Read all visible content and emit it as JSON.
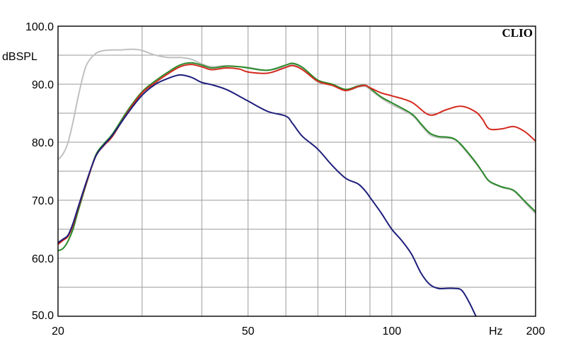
{
  "chart_data": {
    "type": "line",
    "title": "",
    "xlabel": "Hz",
    "ylabel": "dBSPL",
    "x_scale": "log",
    "xlim": [
      20,
      200
    ],
    "ylim": [
      50,
      100
    ],
    "grid": true,
    "legend": "none",
    "brand_label": "CLIO",
    "x_tick_labels": [
      {
        "value": 20,
        "label": "20"
      },
      {
        "value": 50,
        "label": "50"
      },
      {
        "value": 100,
        "label": "100"
      },
      {
        "value": 200,
        "label": "200"
      }
    ],
    "y_tick_labels": [
      {
        "value": 100,
        "label": "100.0"
      },
      {
        "value": 90,
        "label": "90.0"
      },
      {
        "value": 80,
        "label": "80.0"
      },
      {
        "value": 70,
        "label": "70.0"
      },
      {
        "value": 60,
        "label": "60.0"
      },
      {
        "value": 50,
        "label": "50.0"
      }
    ],
    "x_grid": [
      20,
      30,
      40,
      50,
      60,
      70,
      80,
      90,
      100,
      200
    ],
    "y_grid": [
      50,
      55,
      60,
      65,
      70,
      75,
      80,
      85,
      90,
      95,
      100
    ],
    "series": [
      {
        "color": "#c0c0c0",
        "x": [
          20,
          20.5,
          21,
          21.5,
          22,
          22.5,
          23,
          24,
          25,
          26,
          27,
          28,
          29,
          30,
          32,
          34,
          36,
          38,
          40,
          42,
          45,
          48,
          50,
          55,
          60,
          62,
          65,
          70,
          75,
          80,
          85,
          88,
          90,
          95,
          100,
          110,
          115,
          120,
          125,
          130,
          135,
          140,
          150,
          155,
          160,
          170,
          180,
          190,
          200
        ],
        "y": [
          77.0,
          78.0,
          80.0,
          83.5,
          87.5,
          91.0,
          93.5,
          95.3,
          95.8,
          95.9,
          95.9,
          96.0,
          96.0,
          95.8,
          95.0,
          94.6,
          94.6,
          94.3,
          93.5,
          93.0,
          93.2,
          93.0,
          92.9,
          92.4,
          93.0,
          93.4,
          92.6,
          90.4,
          89.8,
          88.9,
          89.5,
          89.6,
          89.1,
          87.6,
          86.5,
          84.7,
          83.0,
          81.3,
          80.8,
          80.7,
          80.5,
          79.3,
          76.3,
          74.7,
          73.2,
          72.2,
          71.6,
          69.6,
          67.7
        ]
      },
      {
        "color": "#2a8a2a",
        "x": [
          20,
          20.5,
          21,
          21.5,
          22,
          23,
          24,
          25,
          26,
          28,
          30,
          32,
          34,
          36,
          38,
          40,
          42,
          45,
          48,
          50,
          55,
          60,
          62,
          65,
          70,
          75,
          80,
          85,
          88,
          90,
          95,
          100,
          110,
          115,
          120,
          125,
          130,
          135,
          140,
          150,
          155,
          160,
          170,
          180,
          190,
          200
        ],
        "y": [
          61.3,
          61.7,
          63.0,
          65.0,
          67.9,
          73.2,
          77.8,
          79.8,
          81.4,
          85.5,
          88.7,
          90.6,
          92.1,
          93.3,
          93.7,
          93.3,
          92.8,
          93.1,
          93.0,
          92.8,
          92.4,
          93.3,
          93.6,
          92.9,
          90.7,
          90.0,
          89.1,
          89.7,
          89.8,
          89.3,
          87.8,
          86.8,
          84.9,
          83.2,
          81.6,
          81.0,
          80.9,
          80.6,
          79.5,
          76.5,
          74.8,
          73.3,
          72.3,
          71.7,
          69.8,
          68.0
        ]
      },
      {
        "color": "#d42a1e",
        "x": [
          20,
          20.5,
          21,
          21.5,
          22,
          23,
          24,
          25,
          26,
          28,
          30,
          32,
          34,
          36,
          38,
          40,
          42,
          45,
          48,
          50,
          55,
          60,
          62,
          65,
          70,
          75,
          80,
          85,
          88,
          90,
          95,
          100,
          110,
          120,
          130,
          140,
          150,
          155,
          160,
          170,
          180,
          190,
          200
        ],
        "y": [
          62.4,
          63.1,
          63.8,
          65.7,
          68.4,
          73.3,
          77.6,
          79.5,
          81.0,
          85.2,
          88.5,
          90.3,
          91.8,
          93.0,
          93.4,
          93.0,
          92.5,
          92.8,
          92.6,
          92.1,
          91.9,
          92.9,
          93.2,
          92.5,
          90.5,
          89.8,
          88.9,
          89.6,
          89.8,
          89.4,
          88.5,
          88.0,
          86.9,
          84.7,
          85.6,
          86.2,
          85.2,
          83.9,
          82.3,
          82.3,
          82.7,
          81.8,
          80.2
        ]
      },
      {
        "color": "#1e1e7c",
        "x": [
          20,
          20.5,
          21,
          21.5,
          22,
          23,
          24,
          25,
          26,
          28,
          30,
          32,
          34,
          36,
          38,
          40,
          42,
          45,
          48,
          50,
          55,
          60,
          62,
          65,
          70,
          75,
          80,
          85,
          88,
          90,
          95,
          100,
          105,
          110,
          115,
          120,
          125,
          130,
          135,
          140,
          145,
          150
        ],
        "y": [
          62.7,
          63.3,
          64.0,
          66.0,
          68.6,
          73.5,
          77.6,
          79.6,
          81.2,
          85.0,
          88.1,
          90.0,
          91.0,
          91.6,
          91.2,
          90.3,
          89.9,
          89.1,
          87.9,
          87.1,
          85.3,
          84.5,
          83.2,
          81.0,
          78.8,
          76.0,
          73.8,
          72.8,
          71.6,
          70.5,
          67.8,
          65.0,
          63.0,
          60.7,
          57.5,
          55.5,
          54.8,
          54.8,
          54.8,
          54.5,
          52.5,
          50.0
        ]
      }
    ]
  }
}
